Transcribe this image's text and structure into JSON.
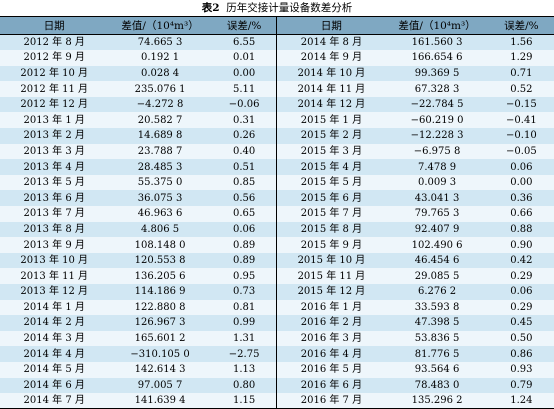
{
  "caption": {
    "label": "表2",
    "title": "历年交接计量设备数差分析"
  },
  "headers": {
    "date": "日期",
    "diff": "差值/（10⁴m³）",
    "error": "误差/%"
  },
  "left_rows": [
    [
      "2012 年 8 月",
      "74.665 3",
      "6.55"
    ],
    [
      "2012 年 9 月",
      "0.192 1",
      "0.01"
    ],
    [
      "2012 年 10 月",
      "0.028 4",
      "0.00"
    ],
    [
      "2012 年 11 月",
      "235.076 1",
      "5.11"
    ],
    [
      "2012 年 12 月",
      "−4.272 8",
      "−0.06"
    ],
    [
      "2013 年 1 月",
      "20.582 7",
      "0.31"
    ],
    [
      "2013 年 2 月",
      "14.689 8",
      "0.26"
    ],
    [
      "2013 年 3 月",
      "23.788 7",
      "0.40"
    ],
    [
      "2013 年 4 月",
      "28.485 3",
      "0.51"
    ],
    [
      "2013 年 5 月",
      "55.375 0",
      "0.85"
    ],
    [
      "2013 年 6 月",
      "36.075 3",
      "0.56"
    ],
    [
      "2013 年 7 月",
      "46.963 6",
      "0.65"
    ],
    [
      "2013 年 8 月",
      "4.806 5",
      "0.06"
    ],
    [
      "2013 年 9 月",
      "108.148 0",
      "0.89"
    ],
    [
      "2013 年 10 月",
      "120.553 8",
      "0.89"
    ],
    [
      "2013 年 11 月",
      "136.205 6",
      "0.95"
    ],
    [
      "2013 年 12 月",
      "114.186 9",
      "0.73"
    ],
    [
      "2014 年 1 月",
      "122.880 8",
      "0.81"
    ],
    [
      "2014 年 2 月",
      "126.967 3",
      "0.99"
    ],
    [
      "2014 年 3 月",
      "165.601 2",
      "1.31"
    ],
    [
      "2014 年 4 月",
      "−310.105 0",
      "−2.75"
    ],
    [
      "2014 年 5 月",
      "142.614 3",
      "1.13"
    ],
    [
      "2014 年 6 月",
      "97.005 7",
      "0.80"
    ],
    [
      "2014 年 7 月",
      "141.639 4",
      "1.15"
    ]
  ],
  "right_rows": [
    [
      "2014 年 8 月",
      "161.560 3",
      "1.56"
    ],
    [
      "2014 年 9 月",
      "166.654 6",
      "1.29"
    ],
    [
      "2014 年 10 月",
      "99.369 5",
      "0.71"
    ],
    [
      "2014 年 11 月",
      "67.328 3",
      "0.52"
    ],
    [
      "2014 年 12 月",
      "−22.784 5",
      "−0.15"
    ],
    [
      "2015 年 1 月",
      "−60.219 0",
      "−0.41"
    ],
    [
      "2015 年 2 月",
      "−12.228 3",
      "−0.10"
    ],
    [
      "2015 年 3 月",
      "−6.975 8",
      "−0.05"
    ],
    [
      "2015 年 4 月",
      "7.478 9",
      "0.06"
    ],
    [
      "2015 年 5 月",
      "0.009 3",
      "0.00"
    ],
    [
      "2015 年 6 月",
      "43.041 3",
      "0.36"
    ],
    [
      "2015 年 7 月",
      "79.765 3",
      "0.66"
    ],
    [
      "2015 年 8 月",
      "92.407 9",
      "0.88"
    ],
    [
      "2015 年 9 月",
      "102.490 6",
      "0.90"
    ],
    [
      "2015 年 10 月",
      "46.454 6",
      "0.42"
    ],
    [
      "2015 年 11 月",
      "29.085 5",
      "0.29"
    ],
    [
      "2015 年 12 月",
      "6.276 2",
      "0.06"
    ],
    [
      "2016 年 1 月",
      "33.593 8",
      "0.29"
    ],
    [
      "2016 年 2 月",
      "47.398 5",
      "0.45"
    ],
    [
      "2016 年 3 月",
      "53.836 5",
      "0.50"
    ],
    [
      "2016 年 4 月",
      "81.776 5",
      "0.86"
    ],
    [
      "2016 年 5 月",
      "93.564 6",
      "0.93"
    ],
    [
      "2016 年 6 月",
      "78.483 0",
      "0.79"
    ],
    [
      "2016 年 7 月",
      "135.296 2",
      "1.24"
    ]
  ]
}
